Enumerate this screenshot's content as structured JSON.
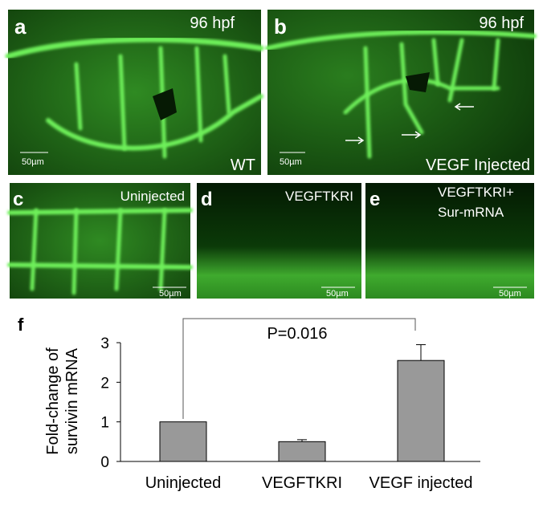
{
  "panels": [
    {
      "label": "a",
      "timepoint": "96 hpf",
      "condition": "WT",
      "scale": "50µm"
    },
    {
      "label": "b",
      "timepoint": "96 hpf",
      "condition": "VEGF Injected",
      "scale": "50µm"
    },
    {
      "label": "c",
      "condition": "Uninjected",
      "scale": "50µm"
    },
    {
      "label": "d",
      "condition": "VEGFTKRI",
      "scale": "50µm"
    },
    {
      "label": "e",
      "condition": [
        "VEGFTKRI+",
        "Sur-mRNA"
      ],
      "scale": "50µm"
    }
  ],
  "chart_data": {
    "type": "bar",
    "panel_label": "f",
    "y_label": [
      "Fold-change of",
      "survivin mRNA"
    ],
    "categories": [
      "Uninjected",
      "VEGFTKRI",
      "VEGF injected"
    ],
    "values": [
      1,
      0.5,
      2.55
    ],
    "errors": [
      null,
      0.05,
      0.4
    ],
    "color": "#999999",
    "ylim": [
      0,
      3
    ],
    "yticks": [
      0,
      1,
      2,
      3
    ],
    "annotation": "P=0.016"
  }
}
